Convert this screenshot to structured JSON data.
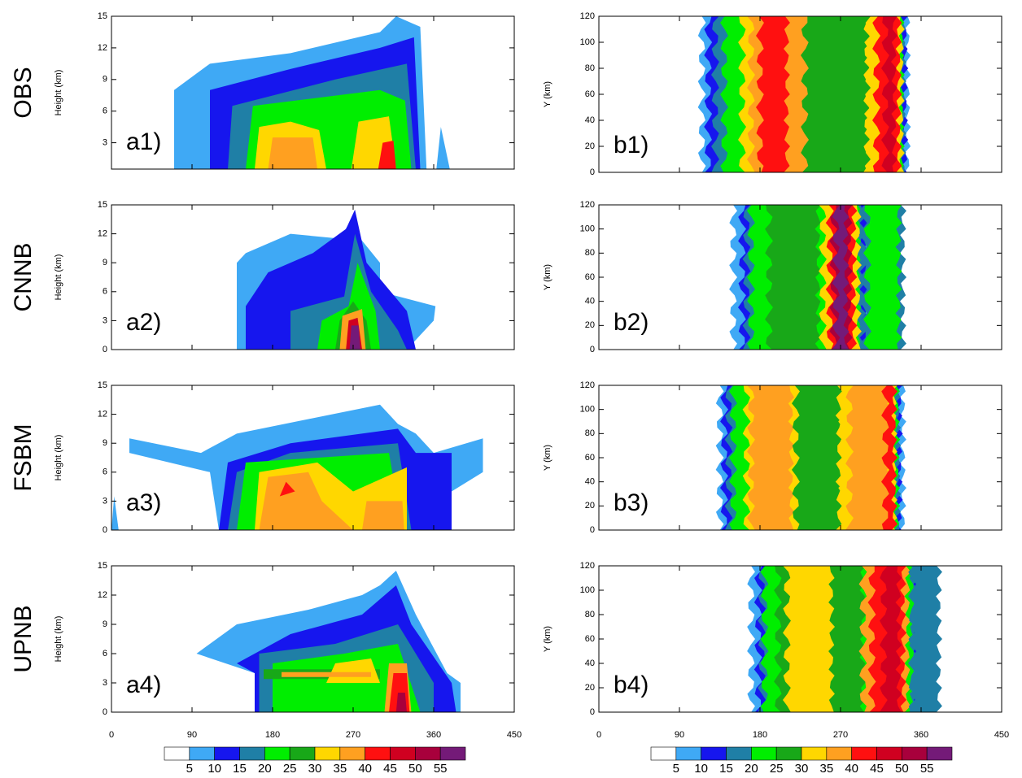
{
  "chart_data": [
    {
      "type": "contour",
      "row_label": "OBS",
      "panel_label": "a1)",
      "ylabel": "Height (km)",
      "xlim": [
        0,
        450
      ],
      "xticks": [
        0,
        90,
        180,
        270,
        360,
        450
      ],
      "ylim": [
        0.5,
        15
      ],
      "yticks": [
        3,
        6,
        9,
        12,
        15
      ],
      "show_xtick_labels": false
    },
    {
      "type": "contour",
      "panel_label": "b1)",
      "ylabel": "Y (km)",
      "xlim": [
        0,
        450
      ],
      "xticks": [
        0,
        90,
        180,
        270,
        360,
        450
      ],
      "ylim": [
        0,
        120
      ],
      "yticks": [
        0,
        20,
        40,
        60,
        80,
        100,
        120
      ],
      "show_xtick_labels": false
    },
    {
      "type": "contour",
      "row_label": "CNNB",
      "panel_label": "a2)",
      "ylabel": "Height (km)",
      "xlim": [
        0,
        450
      ],
      "xticks": [
        0,
        90,
        180,
        270,
        360,
        450
      ],
      "ylim": [
        0,
        15
      ],
      "yticks": [
        0,
        3,
        6,
        9,
        12,
        15
      ],
      "show_xtick_labels": false
    },
    {
      "type": "contour",
      "panel_label": "b2)",
      "ylabel": "Y (km)",
      "xlim": [
        0,
        450
      ],
      "xticks": [
        0,
        90,
        180,
        270,
        360,
        450
      ],
      "ylim": [
        0,
        120
      ],
      "yticks": [
        0,
        20,
        40,
        60,
        80,
        100,
        120
      ],
      "show_xtick_labels": false
    },
    {
      "type": "contour",
      "row_label": "FSBM",
      "panel_label": "a3)",
      "ylabel": "Height (km)",
      "xlim": [
        0,
        450
      ],
      "xticks": [
        0,
        90,
        180,
        270,
        360,
        450
      ],
      "ylim": [
        0,
        15
      ],
      "yticks": [
        0,
        3,
        6,
        9,
        12,
        15
      ],
      "show_xtick_labels": false
    },
    {
      "type": "contour",
      "panel_label": "b3)",
      "ylabel": "Y (km)",
      "xlim": [
        0,
        450
      ],
      "xticks": [
        0,
        90,
        180,
        270,
        360,
        450
      ],
      "ylim": [
        0,
        120
      ],
      "yticks": [
        0,
        20,
        40,
        60,
        80,
        100,
        120
      ],
      "show_xtick_labels": false
    },
    {
      "type": "contour",
      "row_label": "UPNB",
      "panel_label": "a4)",
      "ylabel": "Height (km)",
      "xlim": [
        0,
        450
      ],
      "xticks": [
        0,
        90,
        180,
        270,
        360,
        450
      ],
      "ylim": [
        0,
        15
      ],
      "yticks": [
        0,
        3,
        6,
        9,
        12,
        15
      ],
      "show_xtick_labels": true
    },
    {
      "type": "contour",
      "panel_label": "b4)",
      "ylabel": "Y (km)",
      "xlim": [
        0,
        450
      ],
      "xticks": [
        0,
        90,
        180,
        270,
        360,
        450
      ],
      "ylim": [
        0,
        120
      ],
      "yticks": [
        0,
        20,
        40,
        60,
        80,
        100,
        120
      ],
      "show_xtick_labels": true
    }
  ],
  "colorbar": {
    "levels": [
      5,
      10,
      15,
      20,
      25,
      30,
      35,
      40,
      45,
      50,
      55
    ],
    "colors": [
      "#ffffff",
      "#3fa9f5",
      "#1616ee",
      "#1f7fa6",
      "#00ee00",
      "#18a818",
      "#ffd700",
      "#ffa020",
      "#ff1010",
      "#d00020",
      "#a8003c",
      "#741a78"
    ]
  }
}
